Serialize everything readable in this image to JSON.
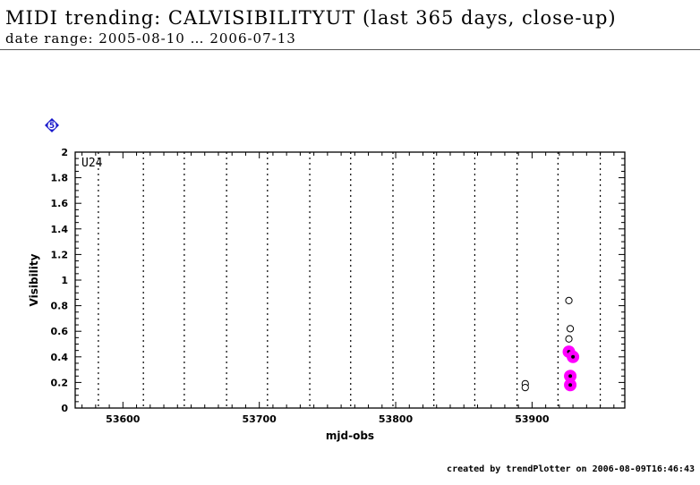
{
  "header": {
    "title": "MIDI trending: CALVISIBILITYUT (last 365 days, close-up)",
    "subtitle": "date range: 2005-08-10 … 2006-07-13"
  },
  "badge": {
    "label": "5",
    "color": "#1a1acc"
  },
  "footer": {
    "text": "created by trendPlotter on 2006-08-09T16:46:43"
  },
  "chart_data": {
    "type": "scatter",
    "panel_label": "U24",
    "xlabel": "mjd-obs",
    "ylabel": "Visibility",
    "xlim": [
      53565,
      53968
    ],
    "ylim": [
      0,
      2
    ],
    "xticks": [
      53600,
      53700,
      53800,
      53900
    ],
    "yticks": [
      0,
      0.2,
      0.4,
      0.6,
      0.8,
      1,
      1.2,
      1.4,
      1.6,
      1.8,
      2
    ],
    "vertical_markers": [
      53582,
      53615,
      53645,
      53676,
      53706,
      53737,
      53767,
      53798,
      53828,
      53858,
      53889,
      53919,
      53950
    ],
    "highlight_color": "#ff00ff",
    "series": [
      {
        "style": "open-circle",
        "points": [
          {
            "x": 53895,
            "y": 0.19
          },
          {
            "x": 53895,
            "y": 0.16
          },
          {
            "x": 53927,
            "y": 0.84
          },
          {
            "x": 53928,
            "y": 0.62
          },
          {
            "x": 53927,
            "y": 0.54
          }
        ]
      },
      {
        "style": "highlighted-dot",
        "points": [
          {
            "x": 53927,
            "y": 0.44
          },
          {
            "x": 53930,
            "y": 0.4
          },
          {
            "x": 53928,
            "y": 0.25
          },
          {
            "x": 53928,
            "y": 0.18
          }
        ]
      }
    ]
  }
}
